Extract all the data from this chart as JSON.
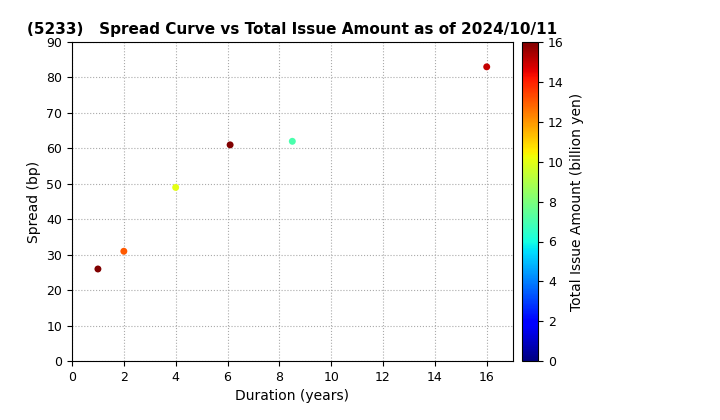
{
  "title": "(5233)   Spread Curve vs Total Issue Amount as of 2024/10/11",
  "xlabel": "Duration (years)",
  "ylabel": "Spread (bp)",
  "colorbar_label": "Total Issue Amount (billion yen)",
  "points": [
    {
      "duration": 1.0,
      "spread": 26,
      "issue_amount": 16.0
    },
    {
      "duration": 2.0,
      "spread": 31,
      "issue_amount": 13.0
    },
    {
      "duration": 4.0,
      "spread": 49,
      "issue_amount": 10.0
    },
    {
      "duration": 6.1,
      "spread": 61,
      "issue_amount": 16.0
    },
    {
      "duration": 8.5,
      "spread": 62,
      "issue_amount": 7.0
    },
    {
      "duration": 16.0,
      "spread": 83,
      "issue_amount": 15.0
    }
  ],
  "xlim": [
    0,
    17
  ],
  "ylim": [
    0,
    90
  ],
  "clim": [
    0,
    16
  ],
  "xticks": [
    0,
    2,
    4,
    6,
    8,
    10,
    12,
    14,
    16
  ],
  "yticks": [
    0,
    10,
    20,
    30,
    40,
    50,
    60,
    70,
    80,
    90
  ],
  "colorbar_ticks": [
    0,
    2,
    4,
    6,
    8,
    10,
    12,
    14,
    16
  ],
  "background_color": "#ffffff",
  "grid_color": "#aaaaaa",
  "title_fontsize": 11,
  "axis_label_fontsize": 10,
  "marker_size": 25
}
